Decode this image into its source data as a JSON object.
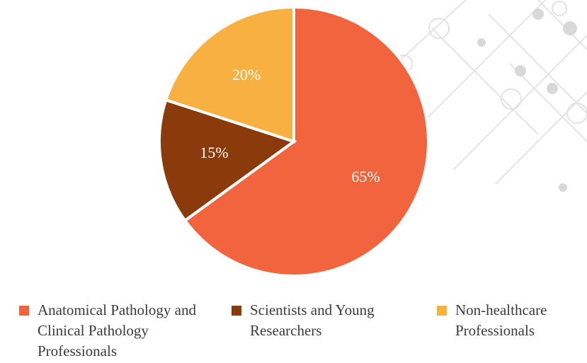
{
  "chart_data": {
    "type": "pie",
    "categories": [
      "Anatomical Pathology and Clinical Pathology Professionals",
      "Scientists and Young Researchers",
      "Non-healthcare Professionals"
    ],
    "values": [
      65,
      15,
      20
    ],
    "value_labels": [
      "65%",
      "15%",
      "20%"
    ],
    "colors": [
      "#f2643d",
      "#8b3a0c",
      "#f8b041"
    ],
    "legend": "bottom"
  }
}
